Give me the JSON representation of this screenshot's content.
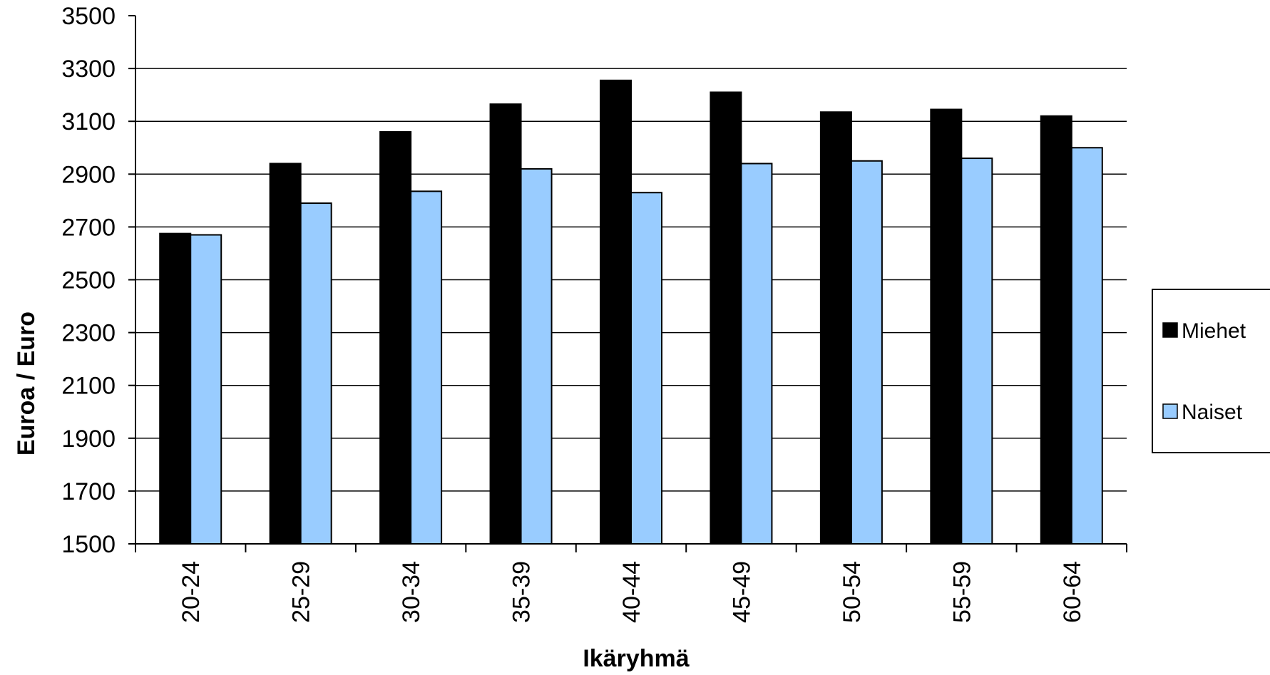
{
  "chart_data": {
    "type": "bar",
    "title": "",
    "xlabel": "Ikäryhmä",
    "ylabel": "Euroa / Euro",
    "categories": [
      "20-24",
      "25-29",
      "30-34",
      "35-39",
      "40-44",
      "45-49",
      "50-54",
      "55-59",
      "60-64"
    ],
    "series": [
      {
        "name": "Miehet",
        "color": "#000000",
        "values": [
          2675,
          2940,
          3060,
          3165,
          3255,
          3210,
          3135,
          3145,
          3120
        ]
      },
      {
        "name": "Naiset",
        "color": "#99ccff",
        "values": [
          2670,
          2790,
          2835,
          2920,
          2830,
          2940,
          2950,
          2960,
          3000
        ]
      }
    ],
    "ylim": [
      1500,
      3500
    ],
    "yticks": [
      1500,
      1700,
      1900,
      2100,
      2300,
      2500,
      2700,
      2900,
      3100,
      3300,
      3500
    ],
    "grid": true,
    "legend_position": "right"
  }
}
